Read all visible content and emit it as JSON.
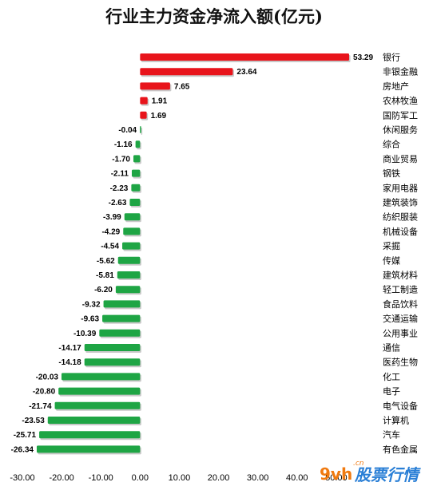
{
  "chart_data": {
    "type": "bar",
    "orientation": "horizontal",
    "title": "行业主力资金净流入额(亿元)",
    "categories": [
      "银行",
      "非银金融",
      "房地产",
      "农林牧渔",
      "国防军工",
      "休闲服务",
      "综合",
      "商业贸易",
      "钢铁",
      "家用电器",
      "建筑装饰",
      "纺织服装",
      "机械设备",
      "采掘",
      "传媒",
      "建筑材料",
      "轻工制造",
      "食品饮料",
      "交通运输",
      "公用事业",
      "通信",
      "医药生物",
      "化工",
      "电子",
      "电气设备",
      "计算机",
      "汽车",
      "有色金属"
    ],
    "values": [
      53.29,
      23.64,
      7.65,
      1.91,
      1.69,
      -0.04,
      -1.16,
      -1.7,
      -2.11,
      -2.23,
      -2.63,
      -3.99,
      -4.29,
      -4.54,
      -5.62,
      -5.81,
      -6.2,
      -9.32,
      -9.63,
      -10.39,
      -14.17,
      -14.18,
      -20.03,
      -20.8,
      -21.74,
      -23.53,
      -25.71,
      -26.34
    ],
    "value_labels": [
      "53.29",
      "23.64",
      "7.65",
      "1.91",
      "1.69",
      "-0.04",
      "-1.16",
      "-1.70",
      "-2.11",
      "-2.23",
      "-2.63",
      "-3.99",
      "-4.29",
      "-4.54",
      "-5.62",
      "-5.81",
      "-6.20",
      "-9.32",
      "-9.63",
      "-10.39",
      "-14.17",
      "-14.18",
      "-20.03",
      "-20.80",
      "-21.74",
      "-23.53",
      "-25.71",
      "-26.34"
    ],
    "xlim": [
      -30,
      60
    ],
    "xticks": [
      -30,
      -20,
      -10,
      0,
      10,
      20,
      30,
      40,
      50
    ],
    "xtick_labels": [
      "-30.00",
      "-20.00",
      "-10.00",
      "0.00",
      "10.00",
      "20.00",
      "30.00",
      "40.00",
      "50.00"
    ],
    "grid": false,
    "legend": "none",
    "colors": {
      "positive": "#e8141b",
      "negative": "#1ea544"
    }
  },
  "watermark": {
    "brand": "9vh",
    "domain": ".cn",
    "name": "股票行情"
  }
}
